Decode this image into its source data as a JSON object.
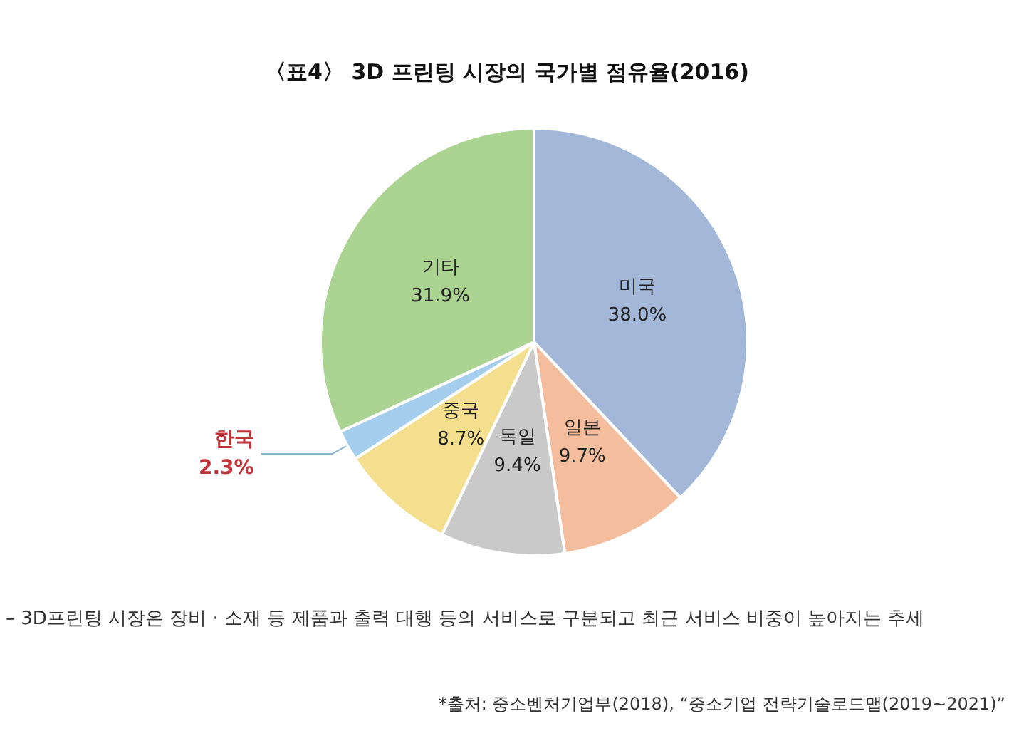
{
  "chart_data": {
    "type": "pie",
    "title": "〈표4〉 3D 프린팅 시장의 국가별 점유율(2016)",
    "categories": [
      "미국",
      "일본",
      "독일",
      "중국",
      "한국",
      "기타"
    ],
    "values": [
      38.0,
      9.7,
      9.4,
      8.7,
      2.3,
      31.9
    ],
    "value_labels": [
      "38.0%",
      "9.7%",
      "9.4%",
      "8.7%",
      "2.3%",
      "31.9%"
    ],
    "colors": [
      "#a3b8d9",
      "#f4bd9e",
      "#c9c9c9",
      "#f3df8e",
      "#a5cdee",
      "#abd392"
    ],
    "annotations": [
      "– 3D프린팅 시장은 장비 · 소재 등 제품과 출력 대행 등의 서비스로 구분되고 최근 서비스 비중이 높아지는 추세",
      "*출처: 중소벤처기업부(2018), “중소기업 전략기술로드맵(2019~2021)”"
    ]
  }
}
